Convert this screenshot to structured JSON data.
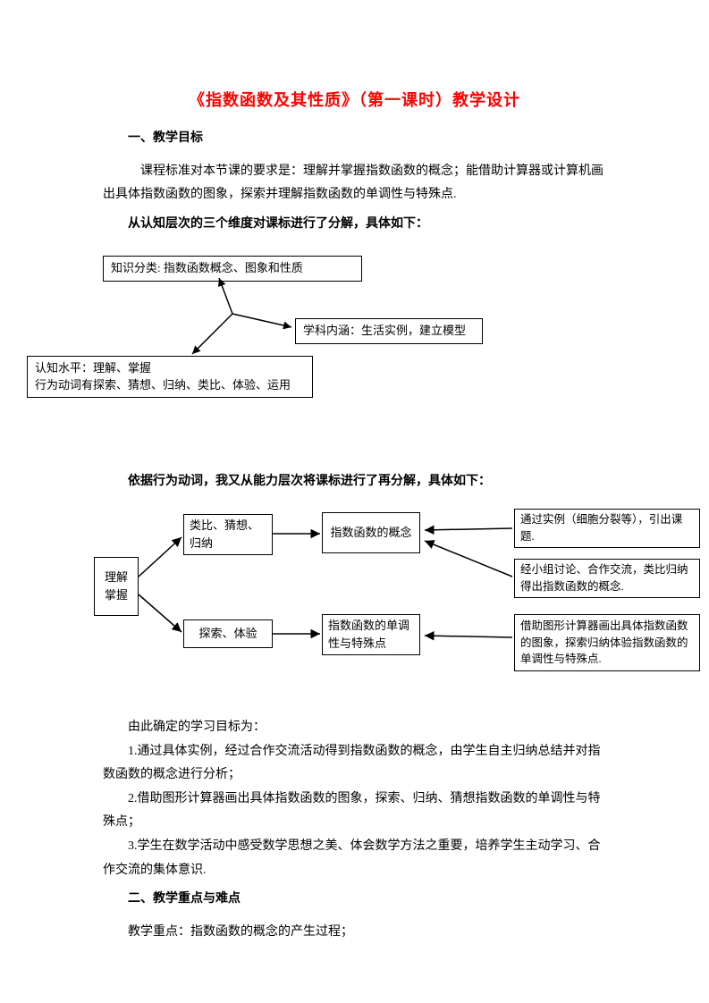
{
  "title": "《指数函数及其性质》（第一课时）教学设计",
  "sections": {
    "s1_heading": "一、教学目标",
    "s1_p1": "课程标准对本节课的要求是：理解并掌握指数函数的概念；能借助计算器或计算机画出具体指数函数的图象，探索并理解指数函数的单调性与特殊点.",
    "s1_bold2": "从认知层次的三个维度对课标进行了分解，具体如下：",
    "s1_bold3": "依据行为动词，我又从能力层次将课标进行了再分解，具体如下：",
    "s1_after_p": "由此确定的学习目标为：",
    "s1_item1": "1.通过具体实例，经过合作交流活动得到指数函数的概念，由学生自主归纳总结并对指数函数的概念进行分析；",
    "s1_item2": "2.借助图形计算器画出具体指数函数的图象，探索、归纳、猜想指数函数的单调性与特殊点；",
    "s1_item3": "3.学生在数学活动中感受数学思想之美、体会数学方法之重要，培养学生主动学习、合作交流的集体意识.",
    "s2_heading": "二、教学重点与难点",
    "s2_p1": "教学重点：指数函数的概念的产生过程；"
  },
  "diagram1": {
    "box_top": "知识分类:  指数函数概念、图象和性质",
    "box_right": "学科内涵：生活实例，建立模型",
    "box_bottom_l1": "认知水平：理解、掌握",
    "box_bottom_l2": "行为动词有探索、猜想、归纳、类比、体验、运用",
    "style": {
      "box_border": "#000000",
      "bg": "#ffffff",
      "font_size": 13,
      "line_color": "#000000",
      "line_width": 1.5
    }
  },
  "diagram2": {
    "col1": "理解\n掌握",
    "col2a": "类比、猜想、归纳",
    "col2b": "探索、体验",
    "col3a": "指数函数的概念",
    "col3b": "指数函数的单调性与特殊点",
    "col4a": "通过实例（细胞分裂等），引出课题.",
    "col4b": "经小组讨论、合作交流，类比归纳得出指数函数的概念.",
    "col4c": "借助图形计算器画出具体指数函数的图象，探索归纳体验指数函数的单调性与特殊点.",
    "style": {
      "box_border": "#000000",
      "bg": "#ffffff",
      "font_size": 13,
      "arrow_color": "#000000",
      "arrow_width": 1.5
    }
  }
}
